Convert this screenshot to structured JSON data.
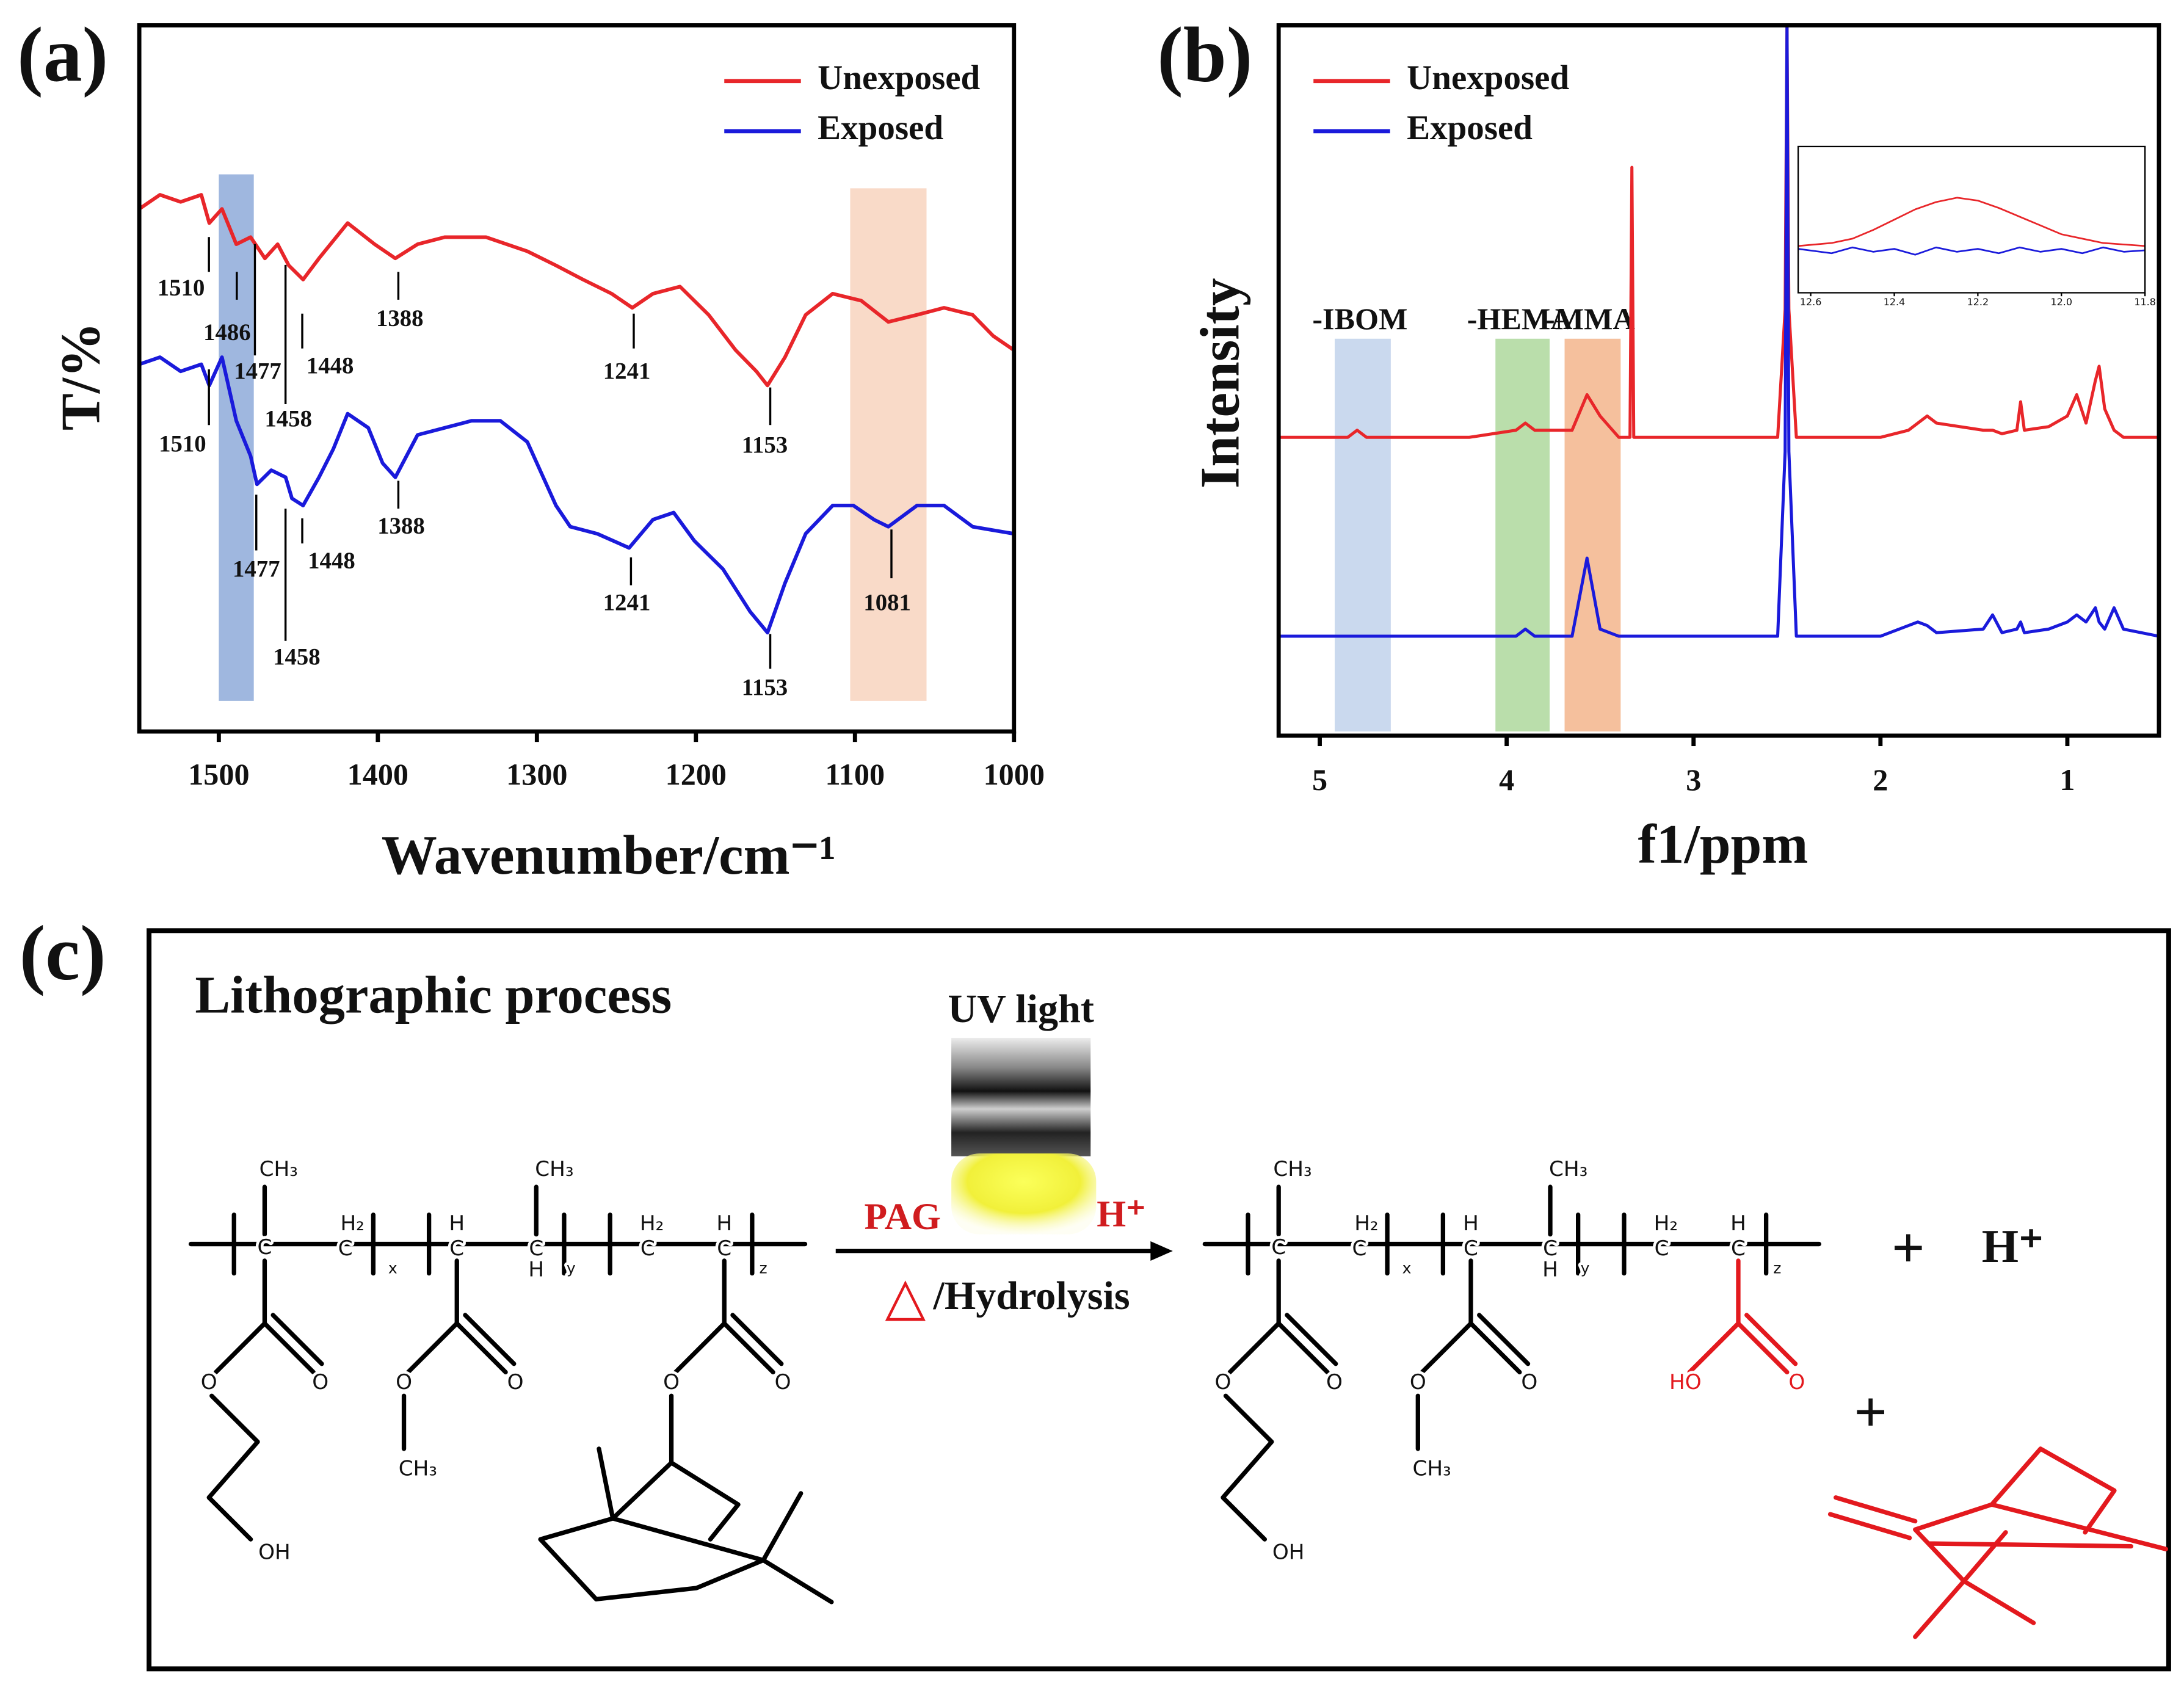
{
  "chart_data": [
    {
      "type": "line",
      "panel": "(a)",
      "x_label": "Wavenumber/cm⁻¹",
      "y_label": "T/%",
      "xlim": [
        1550,
        1000
      ],
      "xticks": [
        1500,
        1400,
        1300,
        1200,
        1100,
        1000
      ],
      "ylim": [
        0,
        100
      ],
      "legend": "upper right",
      "series": [
        {
          "name": "Unexposed",
          "color": "#e8262a",
          "x": [
            1550,
            1537,
            1524,
            1511,
            1506,
            1498,
            1489,
            1480,
            1471,
            1463,
            1456,
            1447,
            1437,
            1419,
            1402,
            1389,
            1375,
            1358,
            1332,
            1306,
            1288,
            1271,
            1253,
            1240,
            1227,
            1210,
            1192,
            1175,
            1162,
            1155,
            1144,
            1131,
            1114,
            1096,
            1079,
            1061,
            1044,
            1026,
            1013,
            1000
          ],
          "values": [
            74,
            76,
            75,
            76,
            72,
            74,
            69,
            70,
            67,
            69,
            66,
            64,
            67,
            72,
            69,
            67,
            69,
            70,
            70,
            68,
            66,
            64,
            62,
            60,
            62,
            63,
            59,
            54,
            51,
            49,
            53,
            59,
            62,
            61,
            58,
            59,
            60,
            59,
            56,
            54
          ]
        },
        {
          "name": "Exposed",
          "color": "#1a1adb",
          "x": [
            1550,
            1537,
            1524,
            1511,
            1506,
            1498,
            1489,
            1480,
            1476,
            1467,
            1458,
            1454,
            1447,
            1437,
            1428,
            1419,
            1406,
            1397,
            1389,
            1375,
            1358,
            1341,
            1323,
            1306,
            1288,
            1279,
            1262,
            1242,
            1227,
            1214,
            1201,
            1183,
            1166,
            1155,
            1144,
            1131,
            1114,
            1101,
            1088,
            1079,
            1061,
            1044,
            1026,
            1000
          ],
          "values": [
            52,
            53,
            51,
            52,
            49,
            53,
            44,
            39,
            35,
            37,
            36,
            33,
            32,
            36,
            40,
            45,
            43,
            38,
            36,
            42,
            43,
            44,
            44,
            41,
            32,
            29,
            28,
            26,
            30,
            31,
            27,
            23,
            17,
            14,
            21,
            28,
            32,
            32,
            30,
            29,
            32,
            32,
            29,
            28
          ]
        }
      ],
      "highlights": [
        {
          "xlim": [
            1500,
            1478
          ],
          "color": "#7f9fd4"
        },
        {
          "xlim": [
            1103,
            1055
          ],
          "color": "#f7cdb6"
        }
      ],
      "annotations": [
        "1510",
        "1486",
        "1477",
        "1458",
        "1448",
        "1388",
        "1241",
        "1153",
        "1510",
        "1477",
        "1458",
        "1448",
        "1388",
        "1241",
        "1153",
        "1081"
      ]
    },
    {
      "type": "line",
      "panel": "(b)",
      "x_label": "f1/ppm",
      "y_label": "Intensity",
      "xlim": [
        5.22,
        0.51
      ],
      "xticks": [
        5,
        4,
        3,
        2,
        1
      ],
      "ylim": [
        0,
        100
      ],
      "legend": "upper left",
      "x": [
        5.22,
        4.85,
        4.8,
        4.75,
        4.2,
        3.95,
        3.9,
        3.85,
        3.65,
        3.57,
        3.5,
        3.4,
        3.34,
        3.33,
        3.32,
        3.2,
        2.55,
        2.51,
        2.5,
        2.49,
        2.45,
        2.0,
        1.85,
        1.8,
        1.75,
        1.7,
        1.45,
        1.4,
        1.35,
        1.27,
        1.25,
        1.23,
        1.1,
        1.0,
        0.95,
        0.9,
        0.85,
        0.83,
        0.8,
        0.75,
        0.7,
        0.51
      ],
      "series": [
        {
          "name": "Unexposed",
          "color": "#e8262a",
          "values": [
            42,
            42,
            43,
            42,
            42,
            43,
            44,
            43,
            43,
            48,
            45,
            42,
            42,
            80,
            42,
            42,
            42,
            60,
            100,
            60,
            42,
            42,
            43,
            44,
            45,
            44,
            43,
            43,
            42.5,
            43,
            47,
            43,
            43.5,
            45,
            48,
            44,
            50,
            52,
            46,
            43,
            42,
            42
          ]
        },
        {
          "name": "Exposed",
          "color": "#1a1adb",
          "values": [
            14,
            14,
            14,
            14,
            14,
            14,
            15,
            14,
            14,
            25,
            15,
            14,
            14,
            14,
            14,
            14,
            14,
            40,
            100,
            40,
            14,
            14,
            15.5,
            16,
            15.5,
            14.5,
            15,
            17,
            14.5,
            15,
            16,
            14.5,
            15,
            16,
            17,
            16,
            18,
            16,
            15,
            18,
            15,
            14
          ]
        }
      ],
      "highlights": [
        {
          "xlim": [
            4.92,
            4.62
          ],
          "color": "#b8cce8",
          "label": "-IBOM"
        },
        {
          "xlim": [
            4.06,
            3.77
          ],
          "color": "#a3d38f",
          "label": "-HEMA"
        },
        {
          "xlim": [
            3.69,
            3.39
          ],
          "color": "#f2ab7c",
          "label": "-MMA"
        }
      ]
    },
    {
      "type": "line",
      "xlim": [
        12.63,
        11.8
      ],
      "xticks": [
        12.6,
        12.4,
        12.2,
        {
          "value": 12,
          "label": "12.0"
        },
        11.8
      ],
      "ylim": [
        0,
        100
      ],
      "x": [
        12.63,
        12.55,
        12.5,
        12.45,
        12.4,
        12.35,
        12.3,
        12.25,
        12.2,
        12.15,
        12.1,
        12.05,
        12.0,
        11.95,
        11.9,
        11.85,
        11.8
      ],
      "series": [
        {
          "color": "#e8262a",
          "values": [
            32,
            34,
            37,
            43,
            50,
            57,
            62,
            65,
            63,
            58,
            52,
            46,
            40,
            37,
            34,
            33,
            32
          ]
        },
        {
          "color": "#1a1adb",
          "values": [
            30,
            27,
            31,
            28,
            30,
            26,
            31,
            28,
            30,
            27,
            31,
            28,
            30,
            27,
            31,
            28,
            29
          ]
        }
      ]
    }
  ],
  "diagram": {
    "panel": "(c)",
    "title": "Lithographic process",
    "uv": "UV light",
    "pag": "PAG",
    "acid": "H⁺",
    "heat": "△",
    "hydrolysis": "/Hydrolysis",
    "plus": "+",
    "product_acid": "H⁺",
    "plus_2": "+",
    "reactant_labels": [
      "CH₃",
      "C",
      "H₂",
      "C",
      "x",
      "H",
      "C",
      "CH₃",
      "C",
      "H",
      "y",
      "H₂",
      "C",
      "H",
      "C",
      "z",
      "O",
      "O",
      "OH",
      "O",
      "O",
      "CH₃",
      "O",
      "O"
    ],
    "product_labels": [
      "CH₃",
      "C",
      "H₂",
      "C",
      "x",
      "H",
      "C",
      "CH₃",
      "C",
      "H",
      "y",
      "H₂",
      "C",
      "H",
      "C",
      "z",
      "O",
      "O",
      "OH",
      "O",
      "O",
      "CH₃",
      "HO",
      "O"
    ]
  }
}
